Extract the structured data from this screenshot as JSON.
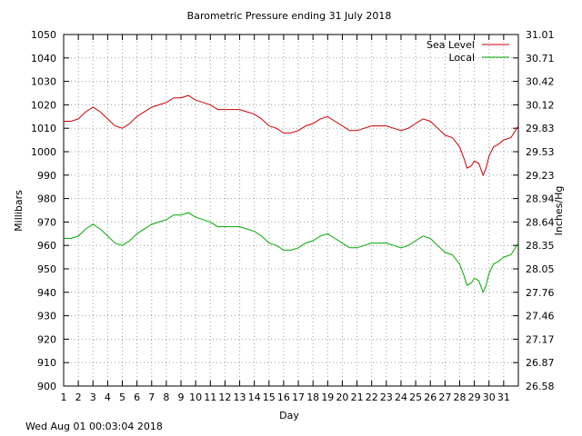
{
  "timestamp": "Wed Aug 01 00:03:04 2018",
  "chart_data": {
    "type": "line",
    "title": "Barometric Pressure ending 31 July 2018",
    "xlabel": "Day",
    "ylabel": "Millibars",
    "y2label": "Inches/Hg",
    "xlim": [
      1,
      32
    ],
    "ylim": [
      900,
      1050
    ],
    "x_ticks": [
      1,
      2,
      3,
      4,
      5,
      6,
      7,
      8,
      9,
      10,
      11,
      12,
      13,
      14,
      15,
      16,
      17,
      18,
      19,
      20,
      21,
      22,
      23,
      24,
      25,
      26,
      27,
      28,
      29,
      30,
      31
    ],
    "y_ticks": [
      900,
      910,
      920,
      930,
      940,
      950,
      960,
      970,
      980,
      990,
      1000,
      1010,
      1020,
      1030,
      1040,
      1050
    ],
    "y2_ticks": [
      "26.58",
      "26.87",
      "27.17",
      "27.46",
      "27.76",
      "28.05",
      "28.35",
      "28.64",
      "28.94",
      "29.23",
      "29.53",
      "29.83",
      "30.12",
      "30.42",
      "30.71",
      "31.01"
    ],
    "grid": true,
    "legend_position": "top-right",
    "series": [
      {
        "name": "Sea Level",
        "color": "#cc0000",
        "x": [
          1,
          1.5,
          2,
          2.5,
          3,
          3.5,
          4,
          4.5,
          5,
          5.5,
          6,
          6.5,
          7,
          7.5,
          8,
          8.5,
          9,
          9.5,
          10,
          10.5,
          11,
          11.5,
          12,
          12.5,
          13,
          13.5,
          14,
          14.5,
          15,
          15.5,
          16,
          16.5,
          17,
          17.5,
          18,
          18.5,
          19,
          19.5,
          20,
          20.5,
          21,
          21.5,
          22,
          22.5,
          23,
          23.5,
          24,
          24.5,
          25,
          25.5,
          26,
          26.5,
          27,
          27.5,
          28,
          28.3,
          28.5,
          28.8,
          29,
          29.3,
          29.6,
          29.8,
          30,
          30.3,
          30.6,
          31,
          31.5,
          32
        ],
        "y": [
          1013,
          1013,
          1014,
          1017,
          1019,
          1017,
          1014,
          1011,
          1010,
          1012,
          1015,
          1017,
          1019,
          1020,
          1021,
          1023,
          1023,
          1024,
          1022,
          1021,
          1020,
          1018,
          1018,
          1018,
          1018,
          1017,
          1016,
          1014,
          1011,
          1010,
          1008,
          1008,
          1009,
          1011,
          1012,
          1014,
          1015,
          1013,
          1011,
          1009,
          1009,
          1010,
          1011,
          1011,
          1011,
          1010,
          1009,
          1010,
          1012,
          1014,
          1013,
          1010,
          1007,
          1006,
          1002,
          997,
          993,
          994,
          996,
          995,
          990,
          993,
          998,
          1002,
          1003,
          1005,
          1006,
          1011
        ]
      },
      {
        "name": "Local",
        "color": "#00aa00",
        "x": [
          1,
          1.5,
          2,
          2.5,
          3,
          3.5,
          4,
          4.5,
          5,
          5.5,
          6,
          6.5,
          7,
          7.5,
          8,
          8.5,
          9,
          9.5,
          10,
          10.5,
          11,
          11.5,
          12,
          12.5,
          13,
          13.5,
          14,
          14.5,
          15,
          15.5,
          16,
          16.5,
          17,
          17.5,
          18,
          18.5,
          19,
          19.5,
          20,
          20.5,
          21,
          21.5,
          22,
          22.5,
          23,
          23.5,
          24,
          24.5,
          25,
          25.5,
          26,
          26.5,
          27,
          27.5,
          28,
          28.3,
          28.5,
          28.8,
          29,
          29.3,
          29.6,
          29.8,
          30,
          30.3,
          30.6,
          31,
          31.5,
          32
        ],
        "y": [
          963,
          963,
          964,
          967,
          969,
          967,
          964,
          961,
          960,
          962,
          965,
          967,
          969,
          970,
          971,
          973,
          973,
          974,
          972,
          971,
          970,
          968,
          968,
          968,
          968,
          967,
          966,
          964,
          961,
          960,
          958,
          958,
          959,
          961,
          962,
          964,
          965,
          963,
          961,
          959,
          959,
          960,
          961,
          961,
          961,
          960,
          959,
          960,
          962,
          964,
          963,
          960,
          957,
          956,
          952,
          947,
          943,
          944,
          946,
          945,
          940,
          943,
          948,
          952,
          953,
          955,
          956,
          961
        ]
      }
    ]
  }
}
